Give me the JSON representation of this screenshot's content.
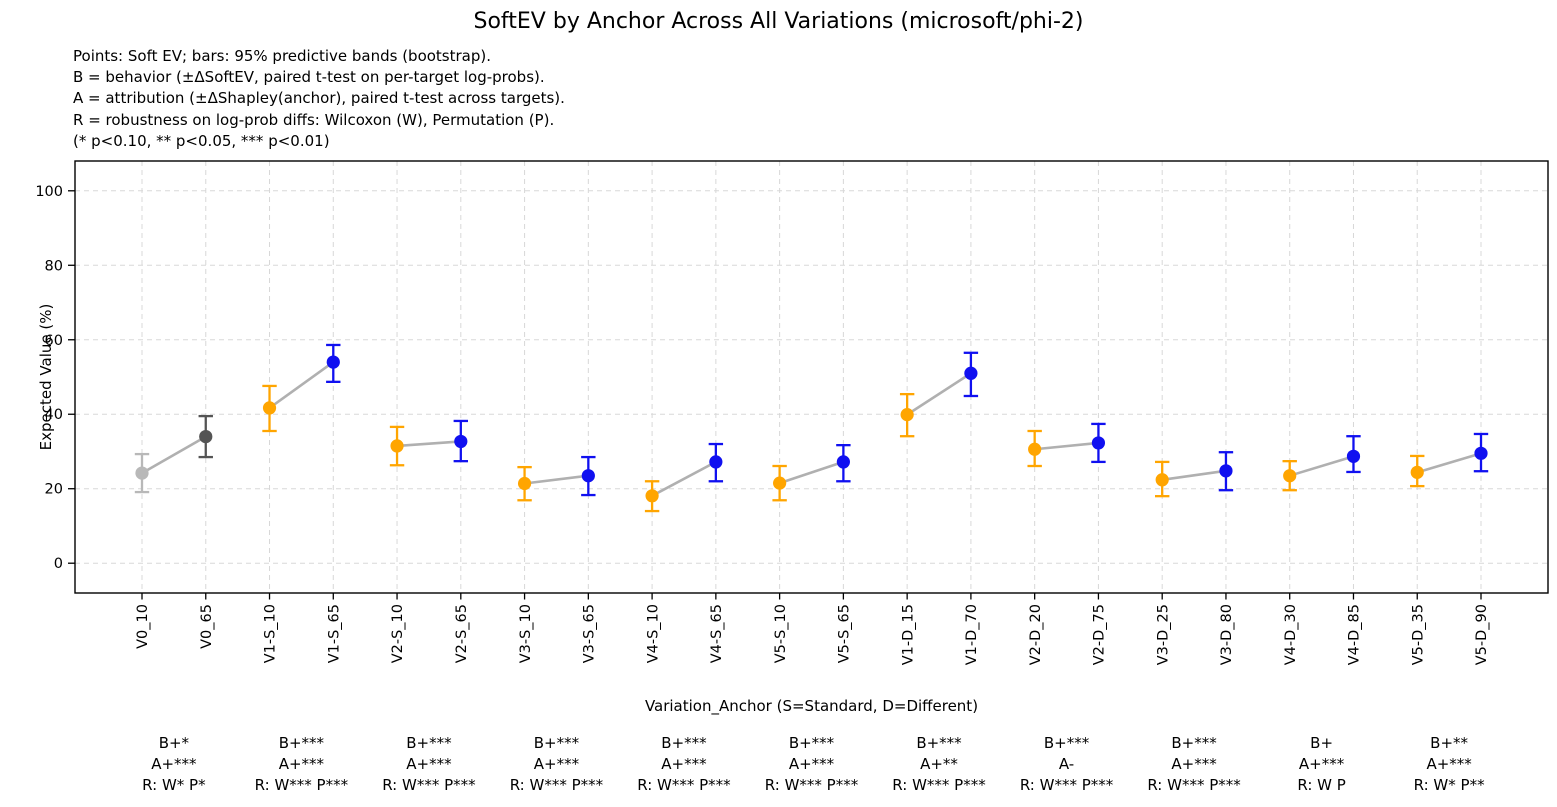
{
  "figure": {
    "title": "SoftEV by Anchor Across All Variations (microsoft/phi-2)",
    "subtitle_lines": [
      "Points: Soft EV; bars: 95% predictive bands (bootstrap).",
      "B = behavior (±ΔSoftEV, paired t-test on per-target log-probs).",
      "A = attribution (±ΔShapley(anchor), paired t-test across targets).",
      "R = robustness on log-prob diffs: Wilcoxon (W), Permutation (P).",
      "(* p<0.10, ** p<0.05, *** p<0.01)"
    ]
  },
  "chart_data": {
    "type": "scatter",
    "title": "SoftEV by Anchor Across All Variations (microsoft/phi-2)",
    "xlabel": "Variation_Anchor (S=Standard, D=Different)",
    "ylabel": "Expected Value (%)",
    "yticks": [
      0,
      20,
      40,
      60,
      80,
      100
    ],
    "ylim": [
      -8,
      108
    ],
    "grid": true,
    "legend": "none",
    "colors": {
      "lightgray": "#b8b8b8",
      "dimgray": "#545454",
      "orange": "#FFA500",
      "blue": "#1010f0",
      "connector": "#b0b0b0",
      "grid": "#d8d8d8"
    },
    "points": [
      {
        "label": "V0_10",
        "value": 24.2,
        "lo": 19.1,
        "hi": 29.3,
        "color": "lightgray"
      },
      {
        "label": "V0_65",
        "value": 34.0,
        "lo": 28.5,
        "hi": 39.5,
        "color": "dimgray"
      },
      {
        "label": "V1-S_10",
        "value": 41.7,
        "lo": 35.5,
        "hi": 47.6,
        "color": "orange"
      },
      {
        "label": "V1-S_65",
        "value": 54.0,
        "lo": 48.7,
        "hi": 58.6,
        "color": "blue"
      },
      {
        "label": "V2-S_10",
        "value": 31.5,
        "lo": 26.3,
        "hi": 36.6,
        "color": "orange"
      },
      {
        "label": "V2-S_65",
        "value": 32.7,
        "lo": 27.4,
        "hi": 38.2,
        "color": "blue"
      },
      {
        "label": "V3-S_10",
        "value": 21.4,
        "lo": 16.9,
        "hi": 25.8,
        "color": "orange"
      },
      {
        "label": "V3-S_65",
        "value": 23.5,
        "lo": 18.3,
        "hi": 28.5,
        "color": "blue"
      },
      {
        "label": "V4-S_10",
        "value": 18.1,
        "lo": 14.0,
        "hi": 22.0,
        "color": "orange"
      },
      {
        "label": "V4-S_65",
        "value": 27.2,
        "lo": 22.0,
        "hi": 32.0,
        "color": "blue"
      },
      {
        "label": "V5-S_10",
        "value": 21.5,
        "lo": 16.9,
        "hi": 26.1,
        "color": "orange"
      },
      {
        "label": "V5-S_65",
        "value": 27.2,
        "lo": 22.0,
        "hi": 31.7,
        "color": "blue"
      },
      {
        "label": "V1-D_15",
        "value": 39.9,
        "lo": 34.1,
        "hi": 45.4,
        "color": "orange"
      },
      {
        "label": "V1-D_70",
        "value": 51.0,
        "lo": 44.9,
        "hi": 56.5,
        "color": "blue"
      },
      {
        "label": "V2-D_20",
        "value": 30.6,
        "lo": 26.1,
        "hi": 35.5,
        "color": "orange"
      },
      {
        "label": "V2-D_75",
        "value": 32.3,
        "lo": 27.2,
        "hi": 37.4,
        "color": "blue"
      },
      {
        "label": "V3-D_25",
        "value": 22.4,
        "lo": 18.0,
        "hi": 27.2,
        "color": "orange"
      },
      {
        "label": "V3-D_80",
        "value": 24.8,
        "lo": 19.6,
        "hi": 29.8,
        "color": "blue"
      },
      {
        "label": "V4-D_30",
        "value": 23.5,
        "lo": 19.6,
        "hi": 27.4,
        "color": "orange"
      },
      {
        "label": "V4-D_85",
        "value": 28.7,
        "lo": 24.5,
        "hi": 34.1,
        "color": "blue"
      },
      {
        "label": "V5-D_35",
        "value": 24.4,
        "lo": 20.7,
        "hi": 28.8,
        "color": "orange"
      },
      {
        "label": "V5-D_90",
        "value": 29.5,
        "lo": 24.7,
        "hi": 34.7,
        "color": "blue"
      }
    ],
    "annotations": [
      {
        "lines": [
          "B+*",
          "A+***",
          "R: W* P*"
        ]
      },
      {
        "lines": [
          "B+***",
          "A+***",
          "R: W*** P***"
        ]
      },
      {
        "lines": [
          "B+***",
          "A+***",
          "R: W*** P***"
        ]
      },
      {
        "lines": [
          "B+***",
          "A+***",
          "R: W*** P***"
        ]
      },
      {
        "lines": [
          "B+***",
          "A+***",
          "R: W*** P***"
        ]
      },
      {
        "lines": [
          "B+***",
          "A+***",
          "R: W*** P***"
        ]
      },
      {
        "lines": [
          "B+***",
          "A+**",
          "R: W*** P***"
        ]
      },
      {
        "lines": [
          "B+***",
          "A-",
          "R: W*** P***"
        ]
      },
      {
        "lines": [
          "B+***",
          "A+***",
          "R: W*** P***"
        ]
      },
      {
        "lines": [
          "B+",
          "A+***",
          "R: W P"
        ]
      },
      {
        "lines": [
          "B+**",
          "A+***",
          "R: W* P**"
        ]
      }
    ]
  }
}
